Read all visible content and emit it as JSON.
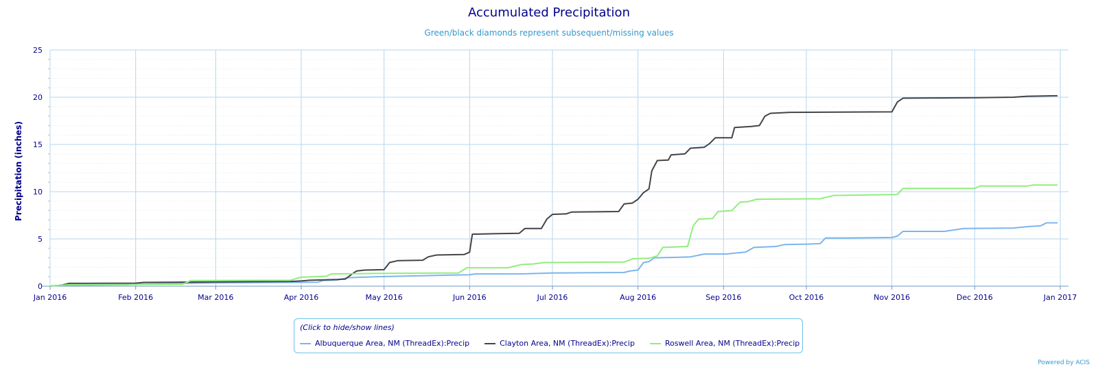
{
  "chart_data": {
    "type": "line",
    "title": "Accumulated Precipitation",
    "subtitle": "Green/black diamonds represent subsequent/missing values",
    "ylabel": "Precipitation (inches)",
    "xlabel": "",
    "ylim": [
      0,
      25
    ],
    "yticks": [
      0,
      5,
      10,
      15,
      20,
      25
    ],
    "xlim": [
      "2016-01-01",
      "2017-01-01"
    ],
    "xticks": [
      {
        "date": "2016-01-01",
        "label": "Jan 2016"
      },
      {
        "date": "2016-02-01",
        "label": "Feb 2016"
      },
      {
        "date": "2016-03-01",
        "label": "Mar 2016"
      },
      {
        "date": "2016-04-01",
        "label": "Apr 2016"
      },
      {
        "date": "2016-05-01",
        "label": "May 2016"
      },
      {
        "date": "2016-06-01",
        "label": "Jun 2016"
      },
      {
        "date": "2016-07-01",
        "label": "Jul 2016"
      },
      {
        "date": "2016-08-01",
        "label": "Aug 2016"
      },
      {
        "date": "2016-09-01",
        "label": "Sep 2016"
      },
      {
        "date": "2016-10-01",
        "label": "Oct 2016"
      },
      {
        "date": "2016-11-01",
        "label": "Nov 2016"
      },
      {
        "date": "2016-12-01",
        "label": "Dec 2016"
      },
      {
        "date": "2017-01-01",
        "label": "Jan 2017"
      }
    ],
    "grid": true,
    "legend_position": "bottom",
    "series": [
      {
        "name": "Albuquerque Area, NM (ThreadEx):Precip",
        "color": "#7cb5ec",
        "points": [
          [
            "2016-01-01",
            0
          ],
          [
            "2016-01-05",
            0.1
          ],
          [
            "2016-01-29",
            0.15
          ],
          [
            "2016-02-03",
            0.22
          ],
          [
            "2016-03-01",
            0.35
          ],
          [
            "2016-03-28",
            0.4
          ],
          [
            "2016-04-07",
            0.42
          ],
          [
            "2016-04-09",
            0.6
          ],
          [
            "2016-04-14",
            0.65
          ],
          [
            "2016-04-18",
            0.9
          ],
          [
            "2016-04-28",
            1.0
          ],
          [
            "2016-05-26",
            1.18
          ],
          [
            "2016-06-01",
            1.2
          ],
          [
            "2016-06-03",
            1.3
          ],
          [
            "2016-06-20",
            1.3
          ],
          [
            "2016-07-01",
            1.4
          ],
          [
            "2016-07-27",
            1.45
          ],
          [
            "2016-07-29",
            1.6
          ],
          [
            "2016-08-01",
            1.7
          ],
          [
            "2016-08-03",
            2.5
          ],
          [
            "2016-08-05",
            2.6
          ],
          [
            "2016-08-07",
            3.0
          ],
          [
            "2016-08-15",
            3.05
          ],
          [
            "2016-08-20",
            3.1
          ],
          [
            "2016-08-25",
            3.4
          ],
          [
            "2016-09-02",
            3.4
          ],
          [
            "2016-09-05",
            3.5
          ],
          [
            "2016-09-09",
            3.6
          ],
          [
            "2016-09-12",
            4.1
          ],
          [
            "2016-09-20",
            4.2
          ],
          [
            "2016-09-23",
            4.4
          ],
          [
            "2016-10-01",
            4.45
          ],
          [
            "2016-10-06",
            4.5
          ],
          [
            "2016-10-08",
            5.1
          ],
          [
            "2016-10-15",
            5.1
          ],
          [
            "2016-11-01",
            5.15
          ],
          [
            "2016-11-03",
            5.3
          ],
          [
            "2016-11-05",
            5.8
          ],
          [
            "2016-11-20",
            5.8
          ],
          [
            "2016-11-27",
            6.1
          ],
          [
            "2016-12-15",
            6.15
          ],
          [
            "2016-12-20",
            6.3
          ],
          [
            "2016-12-25",
            6.4
          ],
          [
            "2016-12-27",
            6.7
          ],
          [
            "2016-12-31",
            6.7
          ]
        ]
      },
      {
        "name": "Clayton Area, NM (ThreadEx):Precip",
        "color": "#434348",
        "points": [
          [
            "2016-01-01",
            0
          ],
          [
            "2016-01-05",
            0.1
          ],
          [
            "2016-01-08",
            0.3
          ],
          [
            "2016-02-01",
            0.32
          ],
          [
            "2016-02-04",
            0.4
          ],
          [
            "2016-03-01",
            0.45
          ],
          [
            "2016-03-28",
            0.5
          ],
          [
            "2016-04-01",
            0.55
          ],
          [
            "2016-04-04",
            0.62
          ],
          [
            "2016-04-14",
            0.7
          ],
          [
            "2016-04-17",
            0.75
          ],
          [
            "2016-04-19",
            1.2
          ],
          [
            "2016-04-21",
            1.6
          ],
          [
            "2016-04-24",
            1.7
          ],
          [
            "2016-05-01",
            1.75
          ],
          [
            "2016-05-03",
            2.5
          ],
          [
            "2016-05-06",
            2.7
          ],
          [
            "2016-05-15",
            2.75
          ],
          [
            "2016-05-17",
            3.1
          ],
          [
            "2016-05-20",
            3.3
          ],
          [
            "2016-05-30",
            3.35
          ],
          [
            "2016-06-01",
            3.6
          ],
          [
            "2016-06-02",
            5.5
          ],
          [
            "2016-06-10",
            5.55
          ],
          [
            "2016-06-19",
            5.6
          ],
          [
            "2016-06-21",
            6.1
          ],
          [
            "2016-06-27",
            6.1
          ],
          [
            "2016-06-29",
            7.1
          ],
          [
            "2016-07-01",
            7.6
          ],
          [
            "2016-07-06",
            7.65
          ],
          [
            "2016-07-08",
            7.85
          ],
          [
            "2016-07-25",
            7.9
          ],
          [
            "2016-07-27",
            8.7
          ],
          [
            "2016-07-30",
            8.8
          ],
          [
            "2016-08-01",
            9.2
          ],
          [
            "2016-08-03",
            9.9
          ],
          [
            "2016-08-05",
            10.3
          ],
          [
            "2016-08-06",
            12.2
          ],
          [
            "2016-08-08",
            13.3
          ],
          [
            "2016-08-12",
            13.35
          ],
          [
            "2016-08-13",
            13.9
          ],
          [
            "2016-08-18",
            14.0
          ],
          [
            "2016-08-20",
            14.6
          ],
          [
            "2016-08-25",
            14.7
          ],
          [
            "2016-08-27",
            15.1
          ],
          [
            "2016-08-29",
            15.7
          ],
          [
            "2016-09-04",
            15.7
          ],
          [
            "2016-09-05",
            16.8
          ],
          [
            "2016-09-11",
            16.9
          ],
          [
            "2016-09-14",
            17.0
          ],
          [
            "2016-09-16",
            18.0
          ],
          [
            "2016-09-18",
            18.3
          ],
          [
            "2016-09-25",
            18.4
          ],
          [
            "2016-11-01",
            18.45
          ],
          [
            "2016-11-03",
            19.5
          ],
          [
            "2016-11-05",
            19.9
          ],
          [
            "2016-12-01",
            19.95
          ],
          [
            "2016-12-15",
            20.0
          ],
          [
            "2016-12-20",
            20.1
          ],
          [
            "2016-12-31",
            20.15
          ]
        ]
      },
      {
        "name": "Roswell Area, NM (ThreadEx):Precip",
        "color": "#90ed7d",
        "points": [
          [
            "2016-01-01",
            0
          ],
          [
            "2016-01-05",
            0.1
          ],
          [
            "2016-01-08",
            0.15
          ],
          [
            "2016-02-18",
            0.2
          ],
          [
            "2016-02-21",
            0.6
          ],
          [
            "2016-03-28",
            0.62
          ],
          [
            "2016-04-01",
            0.95
          ],
          [
            "2016-04-10",
            1.05
          ],
          [
            "2016-04-12",
            1.3
          ],
          [
            "2016-04-28",
            1.35
          ],
          [
            "2016-05-28",
            1.4
          ],
          [
            "2016-05-31",
            1.95
          ],
          [
            "2016-06-15",
            1.95
          ],
          [
            "2016-06-17",
            2.1
          ],
          [
            "2016-06-20",
            2.3
          ],
          [
            "2016-06-24",
            2.35
          ],
          [
            "2016-06-28",
            2.5
          ],
          [
            "2016-07-27",
            2.55
          ],
          [
            "2016-07-30",
            2.9
          ],
          [
            "2016-08-05",
            2.95
          ],
          [
            "2016-08-08",
            3.2
          ],
          [
            "2016-08-10",
            4.1
          ],
          [
            "2016-08-19",
            4.2
          ],
          [
            "2016-08-21",
            6.4
          ],
          [
            "2016-08-23",
            7.1
          ],
          [
            "2016-08-28",
            7.15
          ],
          [
            "2016-08-30",
            7.9
          ],
          [
            "2016-09-04",
            8.0
          ],
          [
            "2016-09-07",
            8.9
          ],
          [
            "2016-09-10",
            8.95
          ],
          [
            "2016-09-13",
            9.2
          ],
          [
            "2016-10-06",
            9.25
          ],
          [
            "2016-10-08",
            9.4
          ],
          [
            "2016-10-11",
            9.6
          ],
          [
            "2016-11-03",
            9.7
          ],
          [
            "2016-11-05",
            10.35
          ],
          [
            "2016-12-01",
            10.35
          ],
          [
            "2016-12-03",
            10.6
          ],
          [
            "2016-12-20",
            10.6
          ],
          [
            "2016-12-22",
            10.7
          ],
          [
            "2016-12-31",
            10.7
          ]
        ]
      }
    ]
  },
  "legend": {
    "hint": "(Click to hide/show lines)"
  },
  "credit": "Powered by ACIS"
}
